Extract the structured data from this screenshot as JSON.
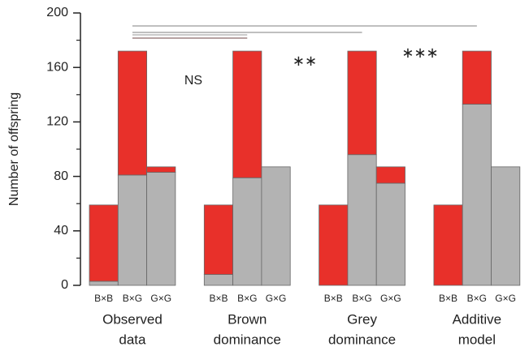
{
  "chart_data": {
    "type": "stacked-bar",
    "y_label": "Number of offspring",
    "categories": [
      "B×B",
      "B×G",
      "G×G",
      "B×B",
      "B×G",
      "G×G",
      "B×B",
      "B×G",
      "G×G",
      "B×B",
      "B×G",
      "G×G"
    ],
    "group_labels": [
      [
        "Observed",
        "data"
      ],
      [
        "Brown",
        "dominance"
      ],
      [
        "Grey",
        "dominance"
      ],
      [
        "Additive",
        "model"
      ]
    ],
    "series": [
      {
        "color": "#b3b3b3",
        "values": [
          3,
          81,
          83,
          8,
          79,
          87,
          0,
          96,
          75,
          0,
          133,
          87
        ]
      },
      {
        "color": "#e8302a",
        "values": [
          56,
          91,
          4,
          51,
          93,
          0,
          59,
          76,
          12,
          59,
          39,
          0
        ]
      }
    ],
    "ylim": [
      0,
      200
    ],
    "yticks": [
      0,
      40,
      80,
      120,
      160,
      200
    ],
    "minor_yticks": [
      20,
      60,
      100,
      140,
      180
    ],
    "annotations": [
      "NS",
      "∗∗",
      "∗∗∗"
    ]
  }
}
